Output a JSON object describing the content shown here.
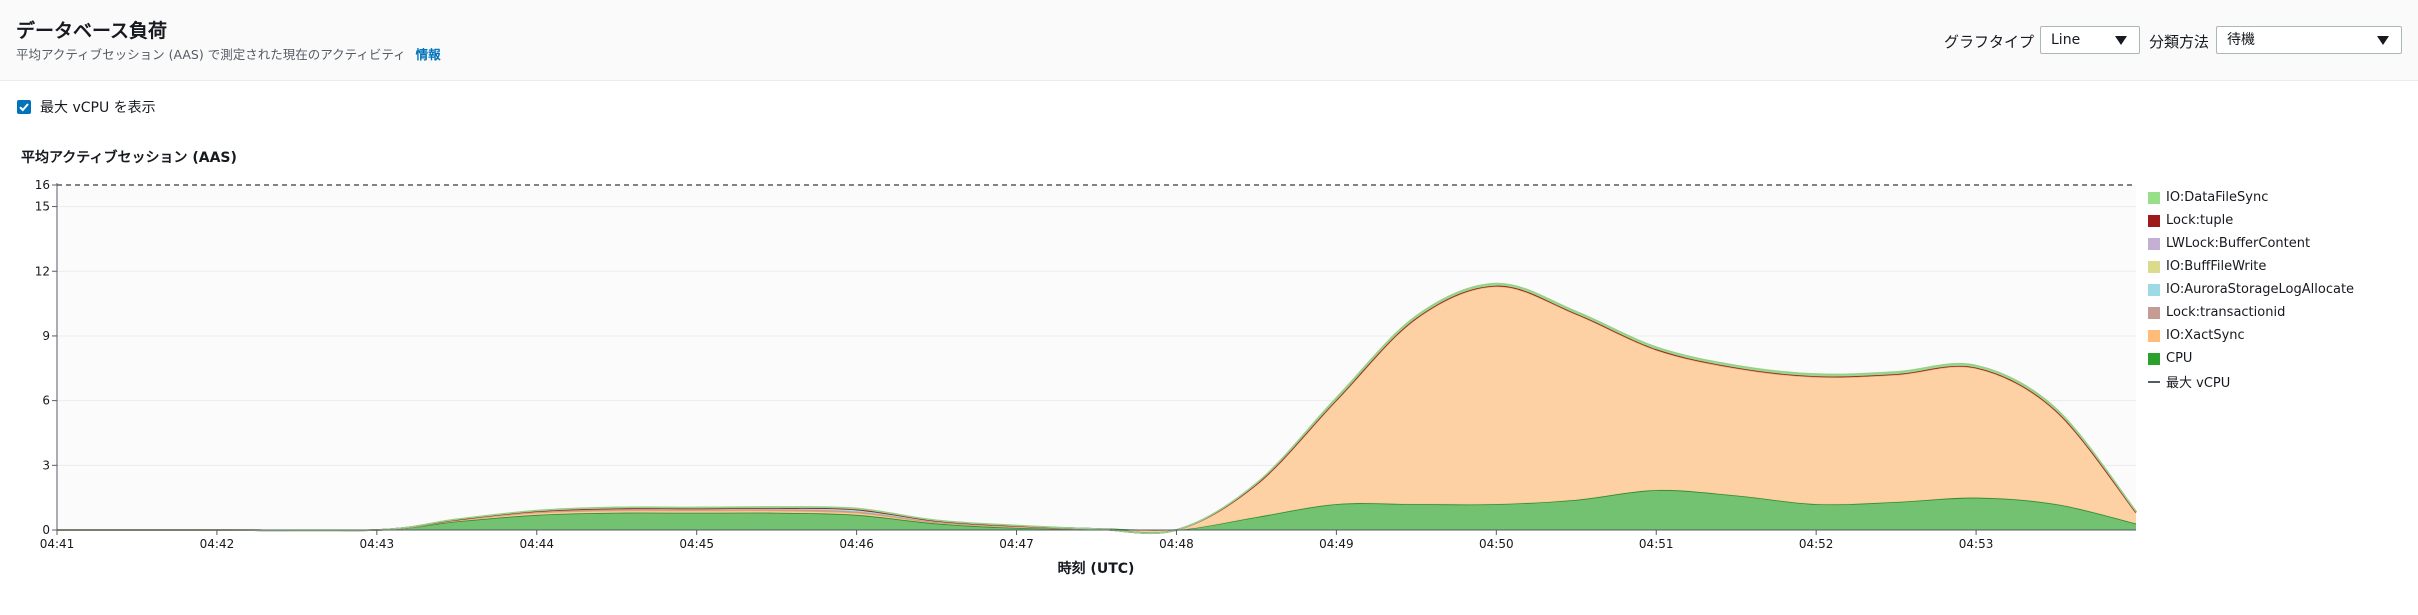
{
  "header": {
    "title": "データベース負荷",
    "subtitle": "平均アクティブセッション (AAS) で測定された現在のアクティビティ",
    "info_link": "情報",
    "graph_type_label": "グラフタイプ",
    "graph_type_value": "Line",
    "group_by_label": "分類方法",
    "group_by_value": "待機"
  },
  "options": {
    "show_max_vcpu_label": "最大 vCPU を表示",
    "show_max_vcpu_checked": true
  },
  "chart_data": {
    "type": "area",
    "stacked": true,
    "title": "平均アクティブセッション (AAS)",
    "xlabel": "時刻 (UTC)",
    "ylabel": "",
    "ylim": [
      0,
      16
    ],
    "yticks": [
      0,
      3,
      6,
      9,
      12,
      15,
      16
    ],
    "x_ticks": [
      "04:41",
      "04:42",
      "04:43",
      "04:44",
      "04:45",
      "04:46",
      "04:47",
      "04:48",
      "04:49",
      "04:50",
      "04:51",
      "04:52",
      "04:53"
    ],
    "x": [
      "04:41",
      "04:42",
      "04:43",
      "04:43:30",
      "04:44",
      "04:44:30",
      "04:45",
      "04:45:30",
      "04:46",
      "04:46:30",
      "04:47",
      "04:47:30",
      "04:48",
      "04:48:30",
      "04:49",
      "04:49:30",
      "04:50",
      "04:50:30",
      "04:51",
      "04:51:30",
      "04:52",
      "04:52:30",
      "04:53",
      "04:53:30",
      "04:54"
    ],
    "x_max": "04:54",
    "grid": true,
    "legend_position": "right",
    "series": [
      {
        "name": "CPU",
        "color": "#2ca02c",
        "values": [
          0,
          0,
          0,
          0.4,
          0.7,
          0.8,
          0.8,
          0.8,
          0.7,
          0.3,
          0.1,
          0.05,
          0,
          0.6,
          1.2,
          1.2,
          1.2,
          1.4,
          1.85,
          1.6,
          1.2,
          1.3,
          1.5,
          1.2,
          0.3
        ]
      },
      {
        "name": "IO:XactSync",
        "color": "#ffbb78",
        "values": [
          0,
          0,
          0,
          0.05,
          0.1,
          0.1,
          0.1,
          0.1,
          0.1,
          0.05,
          0.05,
          0,
          0,
          1.5,
          4.8,
          8.6,
          10.1,
          8.6,
          6.5,
          5.9,
          5.9,
          5.9,
          6.0,
          4.3,
          0.5
        ]
      },
      {
        "name": "Lock:transactionid",
        "color": "#c49c94",
        "values": [
          0,
          0,
          0,
          0.03,
          0.05,
          0.05,
          0.05,
          0.05,
          0.05,
          0.02,
          0.02,
          0,
          0,
          0.02,
          0.03,
          0.03,
          0.03,
          0.03,
          0.03,
          0.03,
          0.03,
          0.03,
          0.03,
          0.03,
          0.02
        ]
      },
      {
        "name": "IO:AuroraStorageLogAllocate",
        "color": "#9edae5",
        "values": [
          0,
          0,
          0,
          0,
          0.02,
          0.05,
          0.05,
          0.07,
          0.1,
          0.05,
          0.02,
          0,
          0,
          0,
          0,
          0,
          0,
          0,
          0,
          0,
          0,
          0,
          0,
          0,
          0
        ]
      },
      {
        "name": "IO:BuffFileWrite",
        "color": "#dbdb8d",
        "values": [
          0,
          0,
          0,
          0,
          0,
          0,
          0,
          0,
          0,
          0,
          0,
          0,
          0,
          0,
          0,
          0,
          0,
          0,
          0,
          0,
          0,
          0,
          0,
          0,
          0
        ]
      },
      {
        "name": "LWLock:BufferContent",
        "color": "#c5b0d5",
        "values": [
          0,
          0,
          0,
          0,
          0,
          0,
          0,
          0,
          0,
          0,
          0,
          0,
          0,
          0,
          0,
          0,
          0,
          0,
          0,
          0,
          0,
          0,
          0,
          0,
          0
        ]
      },
      {
        "name": "Lock:tuple",
        "color": "#9e1a1a",
        "values": [
          0,
          0,
          0,
          0,
          0,
          0,
          0,
          0,
          0,
          0,
          0,
          0,
          0,
          0,
          0,
          0,
          0,
          0,
          0,
          0,
          0,
          0,
          0,
          0,
          0
        ]
      },
      {
        "name": "IO:DataFileSync",
        "color": "#98df8a",
        "values": [
          0,
          0,
          0,
          0.02,
          0.03,
          0.05,
          0.05,
          0.05,
          0.05,
          0.03,
          0.02,
          0,
          0,
          0.05,
          0.1,
          0.1,
          0.1,
          0.1,
          0.1,
          0.1,
          0.1,
          0.1,
          0.1,
          0.1,
          0.05
        ]
      }
    ],
    "legend_order": [
      "IO:DataFileSync",
      "Lock:tuple",
      "LWLock:BufferContent",
      "IO:BuffFileWrite",
      "IO:AuroraStorageLogAllocate",
      "Lock:transactionid",
      "IO:XactSync",
      "CPU"
    ],
    "max_vcpu": {
      "label": "最大 vCPU",
      "value": 16
    }
  }
}
